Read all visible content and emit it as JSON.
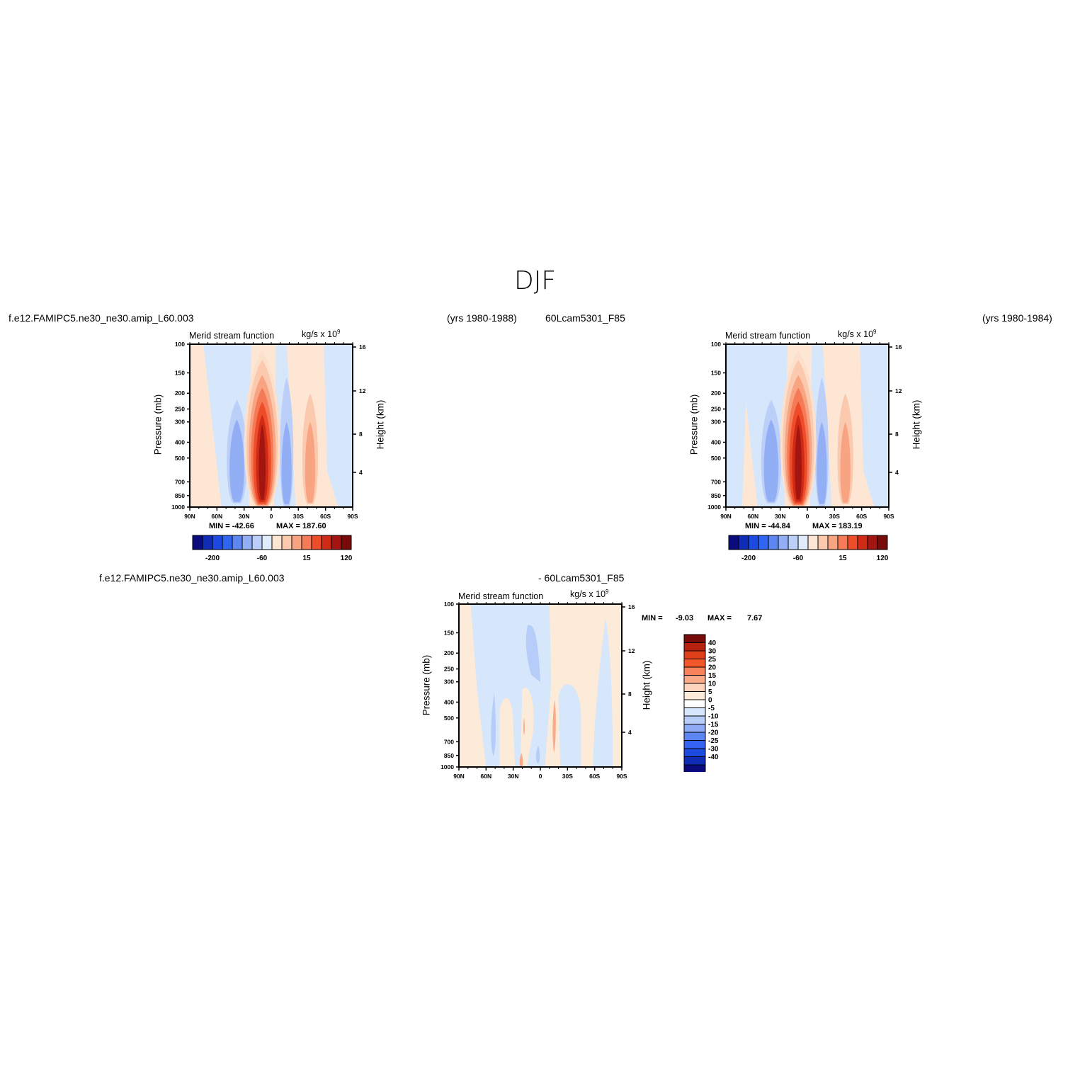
{
  "figure_title": "DJF",
  "cases": {
    "top_left_name": "f.e12.FAMIPC5.ne30_ne30.amip_L60.003",
    "top_left_years": "(yrs 1980-1988)",
    "top_right_name": "60Lcam5301_F85",
    "top_right_years": "(yrs 1980-1984)",
    "bottom_left": "f.e12.FAMIPC5.ne30_ne30.amip_L60.003",
    "bottom_right": "- 60Lcam5301_F85"
  },
  "panel_labels": {
    "left_string": "Merid stream function",
    "right_string_base": "kg/s x 10",
    "right_string_exp": "9",
    "ylabel_left": "Pressure (mb)",
    "ylabel_right": "Height (km)"
  },
  "colors": {
    "main_bar": [
      "#0b0b7e",
      "#102bb5",
      "#1c49e0",
      "#2f65f0",
      "#5d86f2",
      "#92aef5",
      "#bccff8",
      "#e0ebfc",
      "#fde7d4",
      "#fbc9ad",
      "#f8a381",
      "#f47a58",
      "#ee4d2a",
      "#cf2a15",
      "#a31510",
      "#780a0a"
    ],
    "diff_bar": [
      "#780a0a",
      "#b8200f",
      "#e0411b",
      "#f4572b",
      "#f7825b",
      "#f9aa89",
      "#fcd3bc",
      "#fdebd9",
      "#ffffff",
      "#d6e6fb",
      "#b7cdf9",
      "#8eaaf5",
      "#5d86f2",
      "#3461ef",
      "#1c49e0",
      "#102bb5",
      "#0b0b7e"
    ]
  },
  "chart_data": [
    {
      "type": "heatmap",
      "title": "Merid stream function",
      "case": "f.e12.FAMIPC5.ne30_ne30.amip_L60.003",
      "units": "kg/s x 10^9",
      "xlabel": "",
      "ylabel": "Pressure (mb)",
      "ylabel_right": "Height (km)",
      "x_ticks": [
        "90N",
        "60N",
        "30N",
        "0",
        "30S",
        "60S",
        "90S"
      ],
      "y_ticks": [
        100,
        150,
        200,
        250,
        300,
        400,
        500,
        700,
        850,
        1000
      ],
      "y_right_ticks": [
        16,
        12,
        8,
        4
      ],
      "min_label": "MIN = -42.66",
      "max_label": "MAX = 187.60",
      "min": -42.66,
      "max": 187.6,
      "colorbar_labels": [
        "-200",
        "-60",
        "15",
        "120"
      ],
      "cells": [
        {
          "lat": 10,
          "lev_top": 120,
          "lev_bot": 1000,
          "value": 160
        },
        {
          "lat": 38,
          "lev_top": 220,
          "lev_bot": 950,
          "value": -35
        },
        {
          "lat": -17,
          "lev_top": 160,
          "lev_bot": 980,
          "value": -30
        },
        {
          "lat": -43,
          "lev_top": 200,
          "lev_bot": 950,
          "value": 40
        }
      ]
    },
    {
      "type": "heatmap",
      "title": "Merid stream function",
      "case": "60Lcam5301_F85",
      "units": "kg/s x 10^9",
      "xlabel": "",
      "ylabel": "Pressure (mb)",
      "ylabel_right": "Height (km)",
      "x_ticks": [
        "90N",
        "60N",
        "30N",
        "0",
        "30S",
        "60S",
        "90S"
      ],
      "y_ticks": [
        100,
        150,
        200,
        250,
        300,
        400,
        500,
        700,
        850,
        1000
      ],
      "y_right_ticks": [
        16,
        12,
        8,
        4
      ],
      "min_label": "MIN = -44.84",
      "max_label": "MAX = 183.19",
      "min": -44.84,
      "max": 183.19,
      "colorbar_labels": [
        "-200",
        "-60",
        "15",
        "120"
      ],
      "cells": [
        {
          "lat": 10,
          "lev_top": 120,
          "lev_bot": 1000,
          "value": 160
        },
        {
          "lat": 40,
          "lev_top": 220,
          "lev_bot": 950,
          "value": -38
        },
        {
          "lat": -16,
          "lev_top": 160,
          "lev_bot": 980,
          "value": -32
        },
        {
          "lat": -42,
          "lev_top": 200,
          "lev_bot": 950,
          "value": 35
        }
      ]
    },
    {
      "type": "heatmap",
      "title": "Merid stream function",
      "case": "f.e12.FAMIPC5.ne30_ne30.amip_L60.003 - 60Lcam5301_F85",
      "units": "kg/s x 10^9",
      "xlabel": "",
      "ylabel": "Pressure (mb)",
      "ylabel_right": "Height (km)",
      "x_ticks": [
        "90N",
        "60N",
        "30N",
        "0",
        "30S",
        "60S",
        "90S"
      ],
      "y_ticks": [
        100,
        150,
        200,
        250,
        300,
        400,
        500,
        700,
        850,
        1000
      ],
      "y_right_ticks": [
        16,
        12,
        8,
        4
      ],
      "min_label": "MIN =",
      "min_value": "-9.03",
      "max_label": "MAX =",
      "max_value": "7.67",
      "min": -9.03,
      "max": 7.67,
      "colorbar_labels": [
        "40",
        "30",
        "25",
        "20",
        "15",
        "10",
        "5",
        "0",
        "-5",
        "-10",
        "-15",
        "-20",
        "-25",
        "-30",
        "-40"
      ]
    }
  ]
}
